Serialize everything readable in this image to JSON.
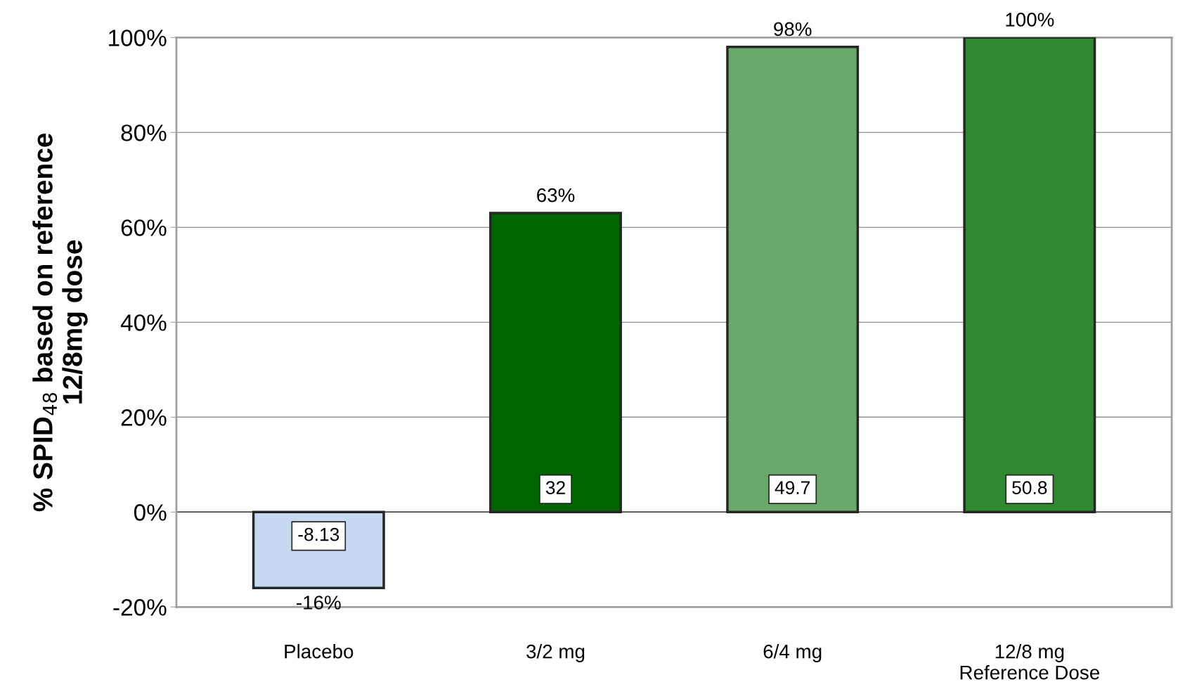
{
  "chart_data": {
    "type": "bar",
    "ylabel": "% SPID$_{48}$ based on reference\n12/8mg dose",
    "categories": [
      "Placebo",
      "3/2 mg",
      "6/4 mg",
      "12/8 mg\nReference Dose"
    ],
    "values": [
      -16,
      63,
      98,
      100
    ],
    "value_labels": [
      "-16%",
      "63%",
      "98%",
      "100%"
    ],
    "colors": [
      "#c6d9f1",
      "#006400",
      "#6aa86a",
      "#2f8a2f"
    ],
    "ylim": [
      -20,
      100
    ],
    "yticks": [
      {
        "value": -20,
        "label": "-20%"
      },
      {
        "value": 0,
        "label": "0%"
      },
      {
        "value": 20,
        "label": "20%"
      },
      {
        "value": 40,
        "label": "40%"
      },
      {
        "value": 60,
        "label": "60%"
      },
      {
        "value": 80,
        "label": "80%"
      },
      {
        "value": 100,
        "label": "100%"
      }
    ],
    "grid": "y",
    "annotations": [
      "-8.13",
      "32",
      "49.7",
      "50.8"
    ]
  }
}
